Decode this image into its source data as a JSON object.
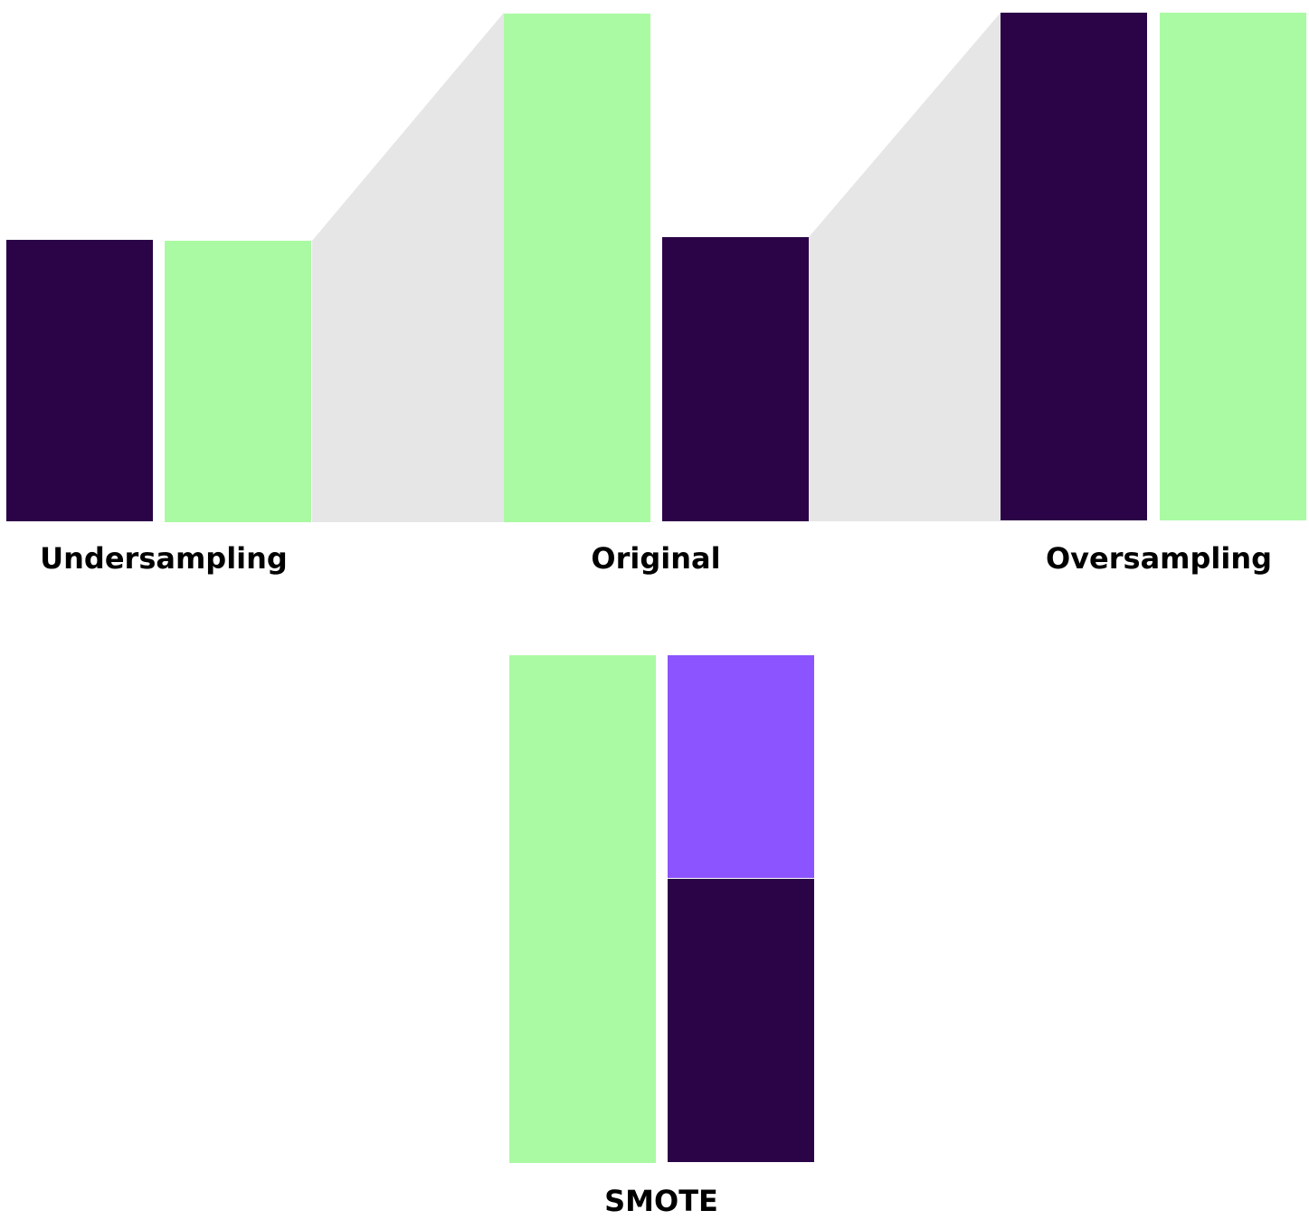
{
  "colors": {
    "majority": "#aafaa3",
    "minority": "#2b0447",
    "synthetic": "#8c54ff",
    "connector": "#e6e6e6",
    "label": "#000000"
  },
  "labels": {
    "undersampling": "Undersampling",
    "original": "Original",
    "oversampling": "Oversampling",
    "smote": "SMOTE"
  },
  "groups": [
    {
      "name": "Undersampling",
      "bars": [
        {
          "class": "minority",
          "value": 1.0
        },
        {
          "class": "majority",
          "value": 1.0
        }
      ]
    },
    {
      "name": "Original",
      "bars": [
        {
          "class": "majority",
          "value": 1.8
        },
        {
          "class": "minority",
          "value": 1.0
        }
      ]
    },
    {
      "name": "Oversampling",
      "bars": [
        {
          "class": "minority",
          "value": 1.8
        },
        {
          "class": "majority",
          "value": 1.8
        }
      ]
    },
    {
      "name": "SMOTE",
      "bars": [
        {
          "class": "majority",
          "value": 1.8
        },
        {
          "class": "minority",
          "value": 1.0,
          "synthetic_added": 0.8
        }
      ]
    }
  ]
}
